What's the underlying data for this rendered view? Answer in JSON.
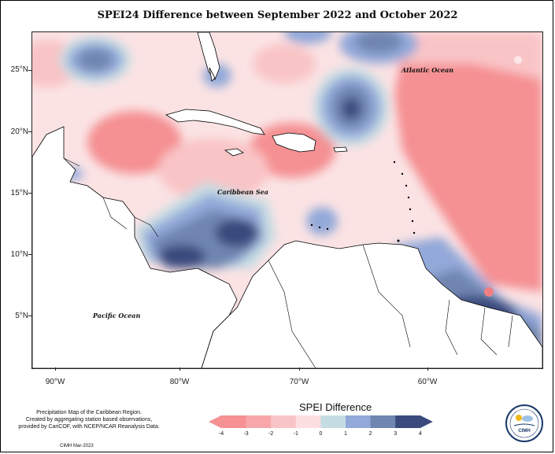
{
  "title": "SPEI24 Difference between September 2022 and October 2022",
  "lat_labels": [
    "25°N",
    "20°N",
    "15°N",
    "10°N",
    "5°N"
  ],
  "lon_labels": [
    "90°W",
    "80°W",
    "70°W",
    "60°W"
  ],
  "places": {
    "atlantic": "Atlantic Ocean",
    "caribbean": "Caribbean Sea",
    "pacific": "Pacific Ocean"
  },
  "legend": {
    "title": "SPEI Difference",
    "labels": [
      "-4",
      "-3",
      "-2",
      "-1",
      "0",
      "1",
      "2",
      "3",
      "4"
    ],
    "colors": [
      "#f59093",
      "#f7a7aa",
      "#f9c4c6",
      "#fcdfe0",
      "#fdf3f3",
      "#c5dce3",
      "#93a9d9",
      "#6f86b0",
      "#3a4a7d"
    ]
  },
  "credit": {
    "line1": "Precipitation Map of the Caribbean Region.",
    "line2": "Created by aggregating station based observations,",
    "line3": "provided by CariCOF, with NCEP/NCAR Reanalysis Data.",
    "small": "CIMH Mar-2023"
  },
  "logo_text": "CIMH"
}
